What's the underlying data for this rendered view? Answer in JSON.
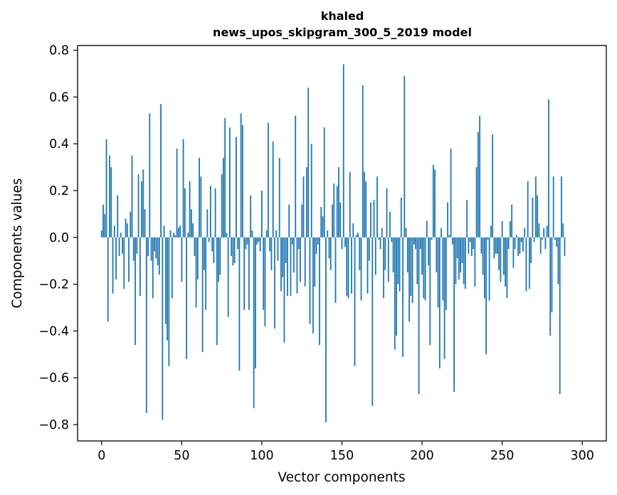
{
  "chart_data": {
    "type": "bar",
    "title_line1": "khaled",
    "title_line2": "news_upos_skipgram_300_5_2019 model",
    "xlabel": "Vector components",
    "ylabel": "Components values",
    "xlim": [
      -15,
      315
    ],
    "ylim": [
      -0.87,
      0.82
    ],
    "x_ticks": [
      0,
      50,
      100,
      150,
      200,
      250,
      300
    ],
    "x_tick_labels": [
      "0",
      "50",
      "100",
      "150",
      "200",
      "250",
      "300"
    ],
    "y_ticks": [
      -0.8,
      -0.6,
      -0.4,
      -0.2,
      0.0,
      0.2,
      0.4,
      0.6,
      0.8
    ],
    "y_tick_labels": [
      "−0.8",
      "−0.6",
      "−0.4",
      "−0.2",
      "0.0",
      "0.2",
      "0.4",
      "0.6",
      "0.8"
    ],
    "bar_color": "#1f77b4",
    "grid": false,
    "values": [
      0.03,
      0.14,
      0.1,
      0.42,
      -0.36,
      0.35,
      0.3,
      -0.24,
      0.05,
      -0.18,
      0.18,
      -0.08,
      0.02,
      -0.07,
      -0.22,
      0.08,
      0.06,
      -0.19,
      0.11,
      0.35,
      -0.1,
      -0.46,
      -0.07,
      0.27,
      -0.25,
      0.24,
      0.29,
      0.12,
      -0.75,
      -0.08,
      0.53,
      -0.1,
      -0.26,
      -0.06,
      -0.09,
      -0.12,
      -0.16,
      0.57,
      -0.78,
      0.05,
      -0.37,
      -0.44,
      -0.55,
      0.03,
      -0.26,
      0.02,
      0.01,
      0.38,
      0.04,
      0.05,
      -0.19,
      0.42,
      0.21,
      -0.52,
      0.02,
      0.24,
      0.12,
      0.06,
      -0.08,
      -0.3,
      -0.18,
      0.34,
      0.26,
      -0.49,
      -0.14,
      -0.31,
      0.12,
      -0.02,
      0.22,
      -0.06,
      -0.11,
      0.21,
      -0.46,
      -0.19,
      -0.16,
      0.27,
      0.34,
      0.51,
      0.02,
      -0.34,
      0.47,
      -0.08,
      -0.12,
      -0.11,
      0.43,
      -0.05,
      -0.57,
      0.53,
      0.48,
      -0.31,
      -0.05,
      -0.03,
      -0.31,
      0.18,
      0.03,
      -0.73,
      -0.56,
      -0.03,
      -0.02,
      -0.06,
      0.2,
      -0.31,
      -0.38,
      0.03,
      0.49,
      -0.06,
      -0.14,
      0.41,
      -0.39,
      0.03,
      -0.1,
      0.34,
      -0.23,
      -0.17,
      -0.45,
      -0.11,
      -0.25,
      0.14,
      -0.25,
      -0.03,
      -0.15,
      0.52,
      -0.24,
      -0.05,
      -0.19,
      0.14,
      0.26,
      -0.21,
      0.3,
      0.64,
      -0.37,
      0.4,
      -0.41,
      -0.21,
      -0.07,
      -0.03,
      -0.46,
      0.13,
      0.09,
      0.47,
      -0.79,
      0.03,
      -0.09,
      -0.14,
      0.14,
      0.23,
      -0.28,
      0.22,
      0.3,
      0.15,
      -0.05,
      0.74,
      -0.04,
      -0.25,
      -0.26,
      0.28,
      -0.24,
      0.06,
      -0.55,
      0.01,
      0.02,
      -0.14,
      -0.27,
      0.65,
      0.28,
      0.24,
      -0.24,
      -0.1,
      0.15,
      -0.72,
      0.16,
      -0.16,
      0.26,
      -0.01,
      -0.05,
      0.04,
      -0.26,
      -0.14,
      0.21,
      -0.19,
      0.11,
      -0.02,
      -0.15,
      -0.48,
      -0.42,
      -0.2,
      -0.23,
      0.17,
      -0.51,
      0.69,
      0.04,
      -0.15,
      -0.36,
      -0.25,
      -0.28,
      -0.03,
      -0.05,
      -0.2,
      -0.67,
      -0.05,
      -0.16,
      -0.26,
      -0.27,
      0.07,
      -0.12,
      -0.46,
      -0.01,
      0.31,
      0.29,
      -0.15,
      -0.3,
      -0.56,
      0.04,
      -0.27,
      -0.52,
      -0.31,
      0.15,
      0.01,
      0.38,
      -0.03,
      -0.66,
      -0.2,
      -0.09,
      -0.18,
      -0.15,
      -0.11,
      -0.2,
      -0.22,
      0.16,
      -0.07,
      -0.02,
      -0.08,
      -0.05,
      -0.21,
      0.3,
      0.45,
      0.52,
      -0.07,
      -0.16,
      -0.26,
      -0.5,
      -0.01,
      -0.27,
      0.05,
      0.44,
      -0.09,
      -0.07,
      -0.07,
      -0.14,
      -0.19,
      0.07,
      -0.16,
      -0.21,
      -0.26,
      -0.05,
      0.07,
      0.14,
      -0.13,
      -0.05,
      0.01,
      -0.08,
      -0.07,
      -0.02,
      -0.06,
      0.04,
      -0.23,
      0.24,
      -0.22,
      -0.11,
      0.17,
      -0.02,
      0.26,
      0.18,
      0.06,
      -0.07,
      -0.01,
      0.04,
      -0.05,
      0.05,
      0.59,
      -0.42,
      -0.32,
      0.26,
      -0.01,
      -0.04,
      -0.2,
      -0.67,
      0.26,
      0.06,
      -0.08
    ]
  }
}
